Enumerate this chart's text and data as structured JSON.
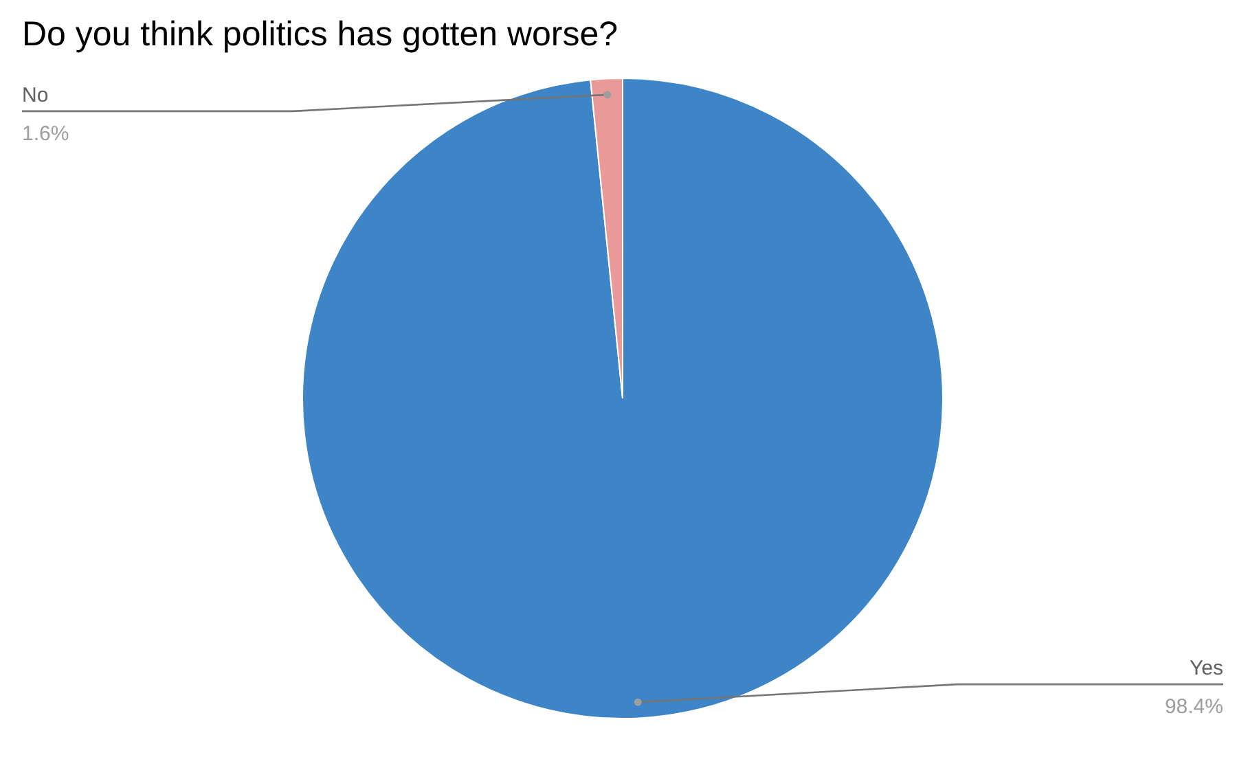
{
  "chart_data": {
    "type": "pie",
    "title": "Do you think politics has gotten worse?",
    "categories": [
      "Yes",
      "No"
    ],
    "values": [
      98.4,
      1.6
    ],
    "colors": [
      "#3d85c6",
      "#ea9999"
    ],
    "value_labels": [
      "98.4%",
      "1.6%"
    ]
  }
}
